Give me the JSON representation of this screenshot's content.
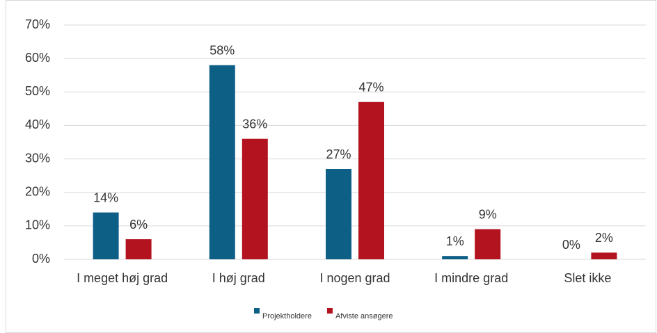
{
  "chart_data": {
    "type": "bar",
    "categories": [
      "I meget høj grad",
      "I høj grad",
      "I nogen grad",
      "I mindre grad",
      "Slet ikke"
    ],
    "series": [
      {
        "name": "Projektholdere",
        "color": "#0e5f86",
        "values": [
          14,
          58,
          27,
          1,
          0
        ],
        "value_labels": [
          "14%",
          "58%",
          "27%",
          "1%",
          "0%"
        ]
      },
      {
        "name": "Afviste ansøgere",
        "color": "#b3121f",
        "values": [
          6,
          36,
          47,
          9,
          2
        ],
        "value_labels": [
          "6%",
          "36%",
          "47%",
          "9%",
          "2%"
        ]
      }
    ],
    "ylim": [
      0,
      70
    ],
    "yticks": [
      {
        "value": 0,
        "label": "0%"
      },
      {
        "value": 10,
        "label": "10%"
      },
      {
        "value": 20,
        "label": "20%"
      },
      {
        "value": 30,
        "label": "30%"
      },
      {
        "value": 40,
        "label": "40%"
      },
      {
        "value": 50,
        "label": "50%"
      },
      {
        "value": 60,
        "label": "60%"
      },
      {
        "value": 70,
        "label": "70%"
      }
    ],
    "grid": true,
    "legend": "bottom"
  }
}
